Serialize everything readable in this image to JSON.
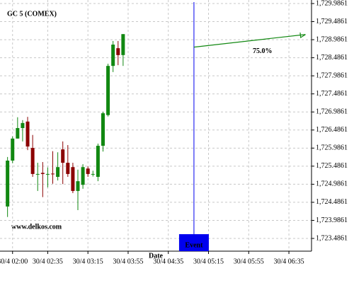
{
  "chart_data": {
    "type": "candlestick",
    "title": "GC 5 (COMEX)",
    "watermark": "www.delkos.com",
    "x_label": "Date",
    "x": [
      0,
      1,
      2,
      3,
      4,
      5,
      6,
      7,
      8,
      9,
      10,
      11,
      12,
      13,
      14,
      15,
      16,
      17,
      18,
      19,
      20,
      21,
      22,
      23
    ],
    "open": [
      1724.37,
      1725.64,
      1726.25,
      1726.54,
      1726.72,
      1725.99,
      1725.27,
      1725.3,
      1725.27,
      1725.28,
      1725.19,
      1725.95,
      1725.58,
      1725.46,
      1724.8,
      1724.97,
      1725.42,
      1725.27,
      1725.19,
      1726.05,
      1726.9,
      1728.26,
      1728.75,
      1728.56
    ],
    "high": [
      1725.74,
      1726.31,
      1726.84,
      1726.76,
      1726.85,
      1726.35,
      1725.58,
      1725.6,
      1725.45,
      1725.9,
      1725.87,
      1726.17,
      1726.07,
      1725.58,
      1725.39,
      1725.54,
      1725.48,
      1725.36,
      1726.11,
      1726.99,
      1728.32,
      1728.95,
      1728.95,
      1729.14
    ],
    "low": [
      1724.08,
      1725.57,
      1726.25,
      1726.17,
      1725.93,
      1725.19,
      1724.8,
      1724.63,
      1724.9,
      1725.0,
      1725.09,
      1724.99,
      1725.19,
      1724.74,
      1724.27,
      1724.86,
      1725.19,
      1725.2,
      1725.07,
      1725.89,
      1726.86,
      1728.09,
      1728.28,
      1728.26
    ],
    "close": [
      1725.64,
      1726.25,
      1726.54,
      1726.68,
      1726.03,
      1725.27,
      1725.27,
      1725.27,
      1725.27,
      1725.27,
      1725.46,
      1725.58,
      1725.27,
      1724.8,
      1725.07,
      1725.46,
      1725.27,
      1725.27,
      1726.05,
      1726.95,
      1728.26,
      1728.85,
      1728.56,
      1729.14
    ],
    "up_color": "#118811",
    "down_color": "#8b0000",
    "xlim": [
      -1.5,
      60.5
    ],
    "ylim": [
      1723.134,
      1730.084
    ],
    "xticks": [
      {
        "value": 1,
        "label": "30/4 02:00"
      },
      {
        "value": 8,
        "label": "30/4 02:35"
      },
      {
        "value": 16,
        "label": "30/4 03:15"
      },
      {
        "value": 24,
        "label": "30/4 03:55"
      },
      {
        "value": 32,
        "label": "30/4 04:35"
      },
      {
        "value": 40,
        "label": "30/4 05:15"
      },
      {
        "value": 48,
        "label": "30/4 05:55"
      },
      {
        "value": 56,
        "label": "30/4 06:35"
      }
    ],
    "yticks": [
      {
        "value": 1723.4861,
        "label": "1,723.4861"
      },
      {
        "value": 1723.9861,
        "label": "1,723.9861"
      },
      {
        "value": 1724.4861,
        "label": "1,724.4861"
      },
      {
        "value": 1724.9861,
        "label": "1,724.9861"
      },
      {
        "value": 1725.4861,
        "label": "1,725.4861"
      },
      {
        "value": 1725.9861,
        "label": "1,725.9861"
      },
      {
        "value": 1726.4861,
        "label": "1,726.4861"
      },
      {
        "value": 1726.9861,
        "label": "1,726.9861"
      },
      {
        "value": 1727.4861,
        "label": "1,727.4861"
      },
      {
        "value": 1727.9861,
        "label": "1,727.9861"
      },
      {
        "value": 1728.4861,
        "label": "1,728.4861"
      },
      {
        "value": 1728.9861,
        "label": "1,728.9861"
      },
      {
        "value": 1729.4861,
        "label": "1,729.4861"
      },
      {
        "value": 1729.9861,
        "label": "1,729.9861"
      }
    ],
    "grid": true,
    "event": {
      "x": 37.1,
      "label": "Event",
      "color": "#0000ee"
    },
    "arrow": {
      "x": [
        37.1,
        59.3
      ],
      "y": [
        1728.78,
        1729.13
      ],
      "label": "75.0%",
      "color": "#118811"
    }
  }
}
